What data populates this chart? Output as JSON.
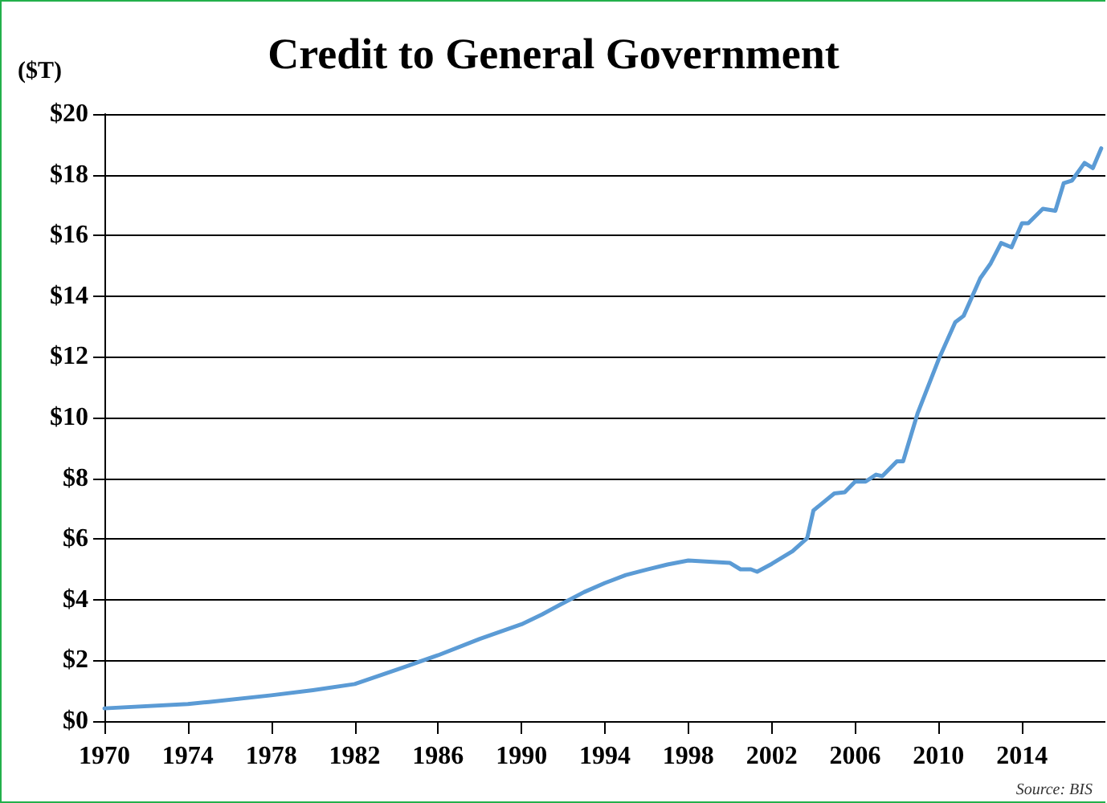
{
  "chart_data": {
    "type": "line",
    "title": "Credit to General Government",
    "ylabel": "($T)",
    "annotations": [
      "Source: BIS"
    ],
    "x": [
      1970,
      1974,
      1975,
      1978,
      1980,
      1982,
      1984,
      1986,
      1988,
      1990,
      1991,
      1992,
      1993,
      1994,
      1995,
      1996,
      1997,
      1998,
      1999,
      2000,
      2000.5,
      2001,
      2001.3,
      2002,
      2003,
      2003.7,
      2004,
      2005,
      2005.5,
      2006,
      2006.5,
      2007,
      2007.3,
      2008,
      2008.3,
      2009,
      2010,
      2010.8,
      2011.2,
      2012,
      2012.5,
      2013,
      2013.5,
      2014,
      2014.3,
      2015,
      2015.6,
      2016,
      2016.4,
      2017,
      2017.4,
      2017.8
    ],
    "series": [
      {
        "color": "#5b9bd5",
        "values": [
          0.42,
          0.56,
          0.63,
          0.85,
          1.02,
          1.22,
          1.69,
          2.17,
          2.71,
          3.19,
          3.52,
          3.89,
          4.25,
          4.55,
          4.81,
          4.99,
          5.16,
          5.29,
          5.25,
          5.21,
          5.0,
          5.0,
          4.92,
          5.18,
          5.6,
          6.03,
          6.94,
          7.5,
          7.54,
          7.89,
          7.89,
          8.12,
          8.07,
          8.56,
          8.56,
          10.15,
          11.91,
          13.14,
          13.35,
          14.59,
          15.08,
          15.75,
          15.61,
          16.4,
          16.4,
          16.88,
          16.81,
          17.72,
          17.81,
          18.39,
          18.22,
          18.87
        ]
      }
    ],
    "xlim": [
      1970,
      2018
    ],
    "xticks": [
      1970,
      1974,
      1978,
      1982,
      1986,
      1990,
      1994,
      1998,
      2002,
      2006,
      2010,
      2014
    ],
    "ylim": [
      0,
      20
    ],
    "yticks": [
      {
        "value": 0,
        "label": "$0"
      },
      {
        "value": 2,
        "label": "$2"
      },
      {
        "value": 4,
        "label": "$4"
      },
      {
        "value": 6,
        "label": "$6"
      },
      {
        "value": 8,
        "label": "$8"
      },
      {
        "value": 10,
        "label": "$10"
      },
      {
        "value": 12,
        "label": "$12"
      },
      {
        "value": 14,
        "label": "$14"
      },
      {
        "value": 16,
        "label": "$16"
      },
      {
        "value": 18,
        "label": "$18"
      },
      {
        "value": 20,
        "label": "$20"
      }
    ],
    "grid": "y",
    "marker": "none",
    "line_style": "solid"
  }
}
